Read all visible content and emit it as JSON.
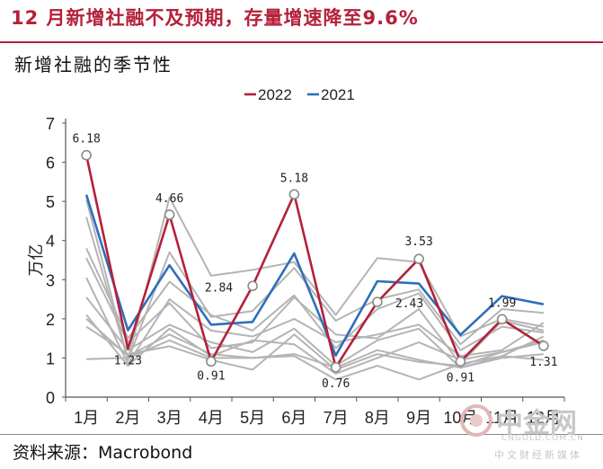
{
  "header": {
    "title": "12 月新增社融不及预期，存量增速降至9.6%",
    "subtitle": "新增社融的季节性"
  },
  "footer": {
    "source": "资料来源：Macrobond"
  },
  "watermark": {
    "name": "中金网",
    "url": "CNGOLD.COM.CN",
    "sub": "中文财经新媒体"
  },
  "chart_data": {
    "type": "line",
    "categories": [
      "1月",
      "2月",
      "3月",
      "4月",
      "5月",
      "6月",
      "7月",
      "8月",
      "9月",
      "10月",
      "11月",
      "12月"
    ],
    "ylabel": "万亿",
    "ylim": [
      0,
      7
    ],
    "yticks": [
      "0",
      "1",
      "2",
      "3",
      "4",
      "5",
      "6",
      "7"
    ],
    "legend_position": "top",
    "series": [
      {
        "name": "2022",
        "color": "#b4213a",
        "highlight": true,
        "values": [
          6.18,
          1.23,
          4.66,
          0.91,
          2.84,
          5.18,
          0.76,
          2.43,
          3.53,
          0.91,
          1.99,
          1.31
        ]
      },
      {
        "name": "2021",
        "color": "#2e6fba",
        "highlight": true,
        "values": [
          5.17,
          1.71,
          3.37,
          1.85,
          1.92,
          3.67,
          1.06,
          2.96,
          2.9,
          1.59,
          2.58,
          2.37
        ]
      }
    ],
    "background_series": [
      {
        "values": [
          5.05,
          0.95,
          5.1,
          3.1,
          3.25,
          3.45,
          2.1,
          3.55,
          3.45,
          1.55,
          2.0,
          1.8
        ]
      },
      {
        "values": [
          4.6,
          0.95,
          3.7,
          2.05,
          2.2,
          3.3,
          1.95,
          2.5,
          2.75,
          1.35,
          2.25,
          2.15
        ]
      },
      {
        "values": [
          3.8,
          1.5,
          2.95,
          2.1,
          1.7,
          2.6,
          1.25,
          2.25,
          2.65,
          1.2,
          1.8,
          1.65
        ]
      },
      {
        "values": [
          3.55,
          1.4,
          2.4,
          1.25,
          1.4,
          2.55,
          1.6,
          1.5,
          2.25,
          0.85,
          1.95,
          1.7
        ]
      },
      {
        "values": [
          3.05,
          0.85,
          2.5,
          1.7,
          1.55,
          2.0,
          1.4,
          1.6,
          1.85,
          1.05,
          1.2,
          1.9
        ]
      },
      {
        "values": [
          2.55,
          1.2,
          1.85,
          1.4,
          1.15,
          1.75,
          0.8,
          1.45,
          1.75,
          0.75,
          1.05,
          1.55
        ]
      },
      {
        "values": [
          2.1,
          0.8,
          1.75,
          1.05,
          1.45,
          1.35,
          0.6,
          1.0,
          1.4,
          0.95,
          1.15,
          1.4
        ]
      },
      {
        "values": [
          2.0,
          1.05,
          1.6,
          1.1,
          1.0,
          1.1,
          0.75,
          1.2,
          0.95,
          0.75,
          1.0,
          1.1
        ]
      },
      {
        "values": [
          1.8,
          1.1,
          1.3,
          0.95,
          0.7,
          1.6,
          0.7,
          1.1,
          0.9,
          0.8,
          1.15,
          1.45
        ]
      },
      {
        "values": [
          0.97,
          1.0,
          1.45,
          1.0,
          1.0,
          1.05,
          0.45,
          0.8,
          0.45,
          0.85,
          1.05,
          0.95
        ]
      }
    ],
    "data_labels": [
      {
        "index": 0,
        "text": "6.18",
        "circle": true
      },
      {
        "index": 1,
        "text": "1.23",
        "circle": false
      },
      {
        "index": 2,
        "text": "4.66",
        "circle": true
      },
      {
        "index": 3,
        "text": "0.91",
        "circle": true
      },
      {
        "index": 4,
        "text": "2.84",
        "circle": true
      },
      {
        "index": 5,
        "text": "5.18",
        "circle": true
      },
      {
        "index": 6,
        "text": "0.76",
        "circle": true
      },
      {
        "index": 7,
        "text": "2.43",
        "circle": true
      },
      {
        "index": 8,
        "text": "3.53",
        "circle": true
      },
      {
        "index": 9,
        "text": "0.91",
        "circle": true
      },
      {
        "index": 10,
        "text": "1.99",
        "circle": true
      },
      {
        "index": 11,
        "text": "1.31",
        "circle": true
      }
    ]
  }
}
